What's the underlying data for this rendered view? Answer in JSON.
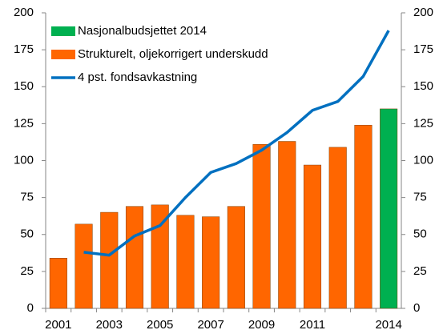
{
  "chart_data": {
    "type": "bar",
    "categories": [
      "2001",
      null,
      "2003",
      null,
      "2005",
      null,
      "2007",
      null,
      "2009",
      null,
      "2011",
      null,
      null,
      "2014"
    ],
    "series": [
      {
        "name": "Nasjonalbudsjettet 2014",
        "type": "bar",
        "color": "#00b050",
        "values": [
          null,
          null,
          null,
          null,
          null,
          null,
          null,
          null,
          null,
          null,
          null,
          null,
          null,
          135
        ]
      },
      {
        "name": "Strukturelt, oljekorrigert underskudd",
        "type": "bar",
        "color": "#ff6600",
        "values": [
          34,
          57,
          65,
          69,
          70,
          63,
          62,
          69,
          111,
          113,
          97,
          109,
          124,
          null
        ]
      },
      {
        "name": "4 pst. fondsavkastning",
        "type": "line",
        "color": "#0070c0",
        "values": [
          null,
          38,
          36,
          49,
          56,
          75,
          92,
          98,
          107,
          119,
          134,
          140,
          157,
          188
        ]
      }
    ],
    "ylim": [
      0,
      200
    ],
    "yticks": [
      0,
      25,
      50,
      75,
      100,
      125,
      150,
      175,
      200
    ],
    "y2lim": [
      0,
      200
    ],
    "y2ticks": [
      0,
      25,
      50,
      75,
      100,
      125,
      150,
      175,
      200
    ],
    "grid": false,
    "legend": "top-left"
  }
}
